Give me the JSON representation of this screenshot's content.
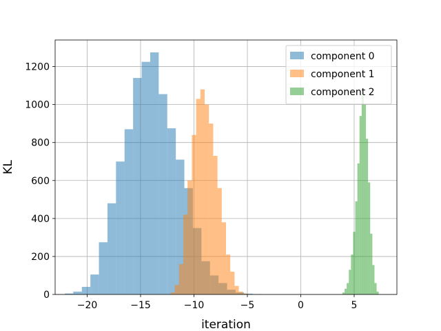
{
  "chart_data": {
    "type": "histogram",
    "title": "",
    "xlabel": "iteration",
    "ylabel": "KL",
    "xlim": [
      -23,
      9
    ],
    "ylim": [
      0,
      1340
    ],
    "grid": true,
    "legend_position": "top-right",
    "x_ticks": [
      -20,
      -15,
      -10,
      -5,
      0,
      5
    ],
    "x_tick_labels": [
      "−20",
      "−15",
      "−10",
      "−5",
      "0",
      "5"
    ],
    "y_ticks": [
      0,
      200,
      400,
      600,
      800,
      1000,
      1200
    ],
    "y_tick_labels": [
      "0",
      "200",
      "400",
      "600",
      "800",
      "1000",
      "1200"
    ],
    "series": [
      {
        "name": "component 0",
        "color": "#1f77b4",
        "opacity": 0.5,
        "bins": [
          {
            "x0": -22.1,
            "x1": -21.3,
            "value": 5
          },
          {
            "x0": -21.3,
            "x1": -20.5,
            "value": 15
          },
          {
            "x0": -20.5,
            "x1": -19.7,
            "value": 40
          },
          {
            "x0": -19.7,
            "x1": -18.9,
            "value": 105
          },
          {
            "x0": -18.9,
            "x1": -18.1,
            "value": 275
          },
          {
            "x0": -18.1,
            "x1": -17.3,
            "value": 480
          },
          {
            "x0": -17.3,
            "x1": -16.5,
            "value": 700
          },
          {
            "x0": -16.5,
            "x1": -15.7,
            "value": 870
          },
          {
            "x0": -15.7,
            "x1": -14.9,
            "value": 1140
          },
          {
            "x0": -14.9,
            "x1": -14.1,
            "value": 1225
          },
          {
            "x0": -14.1,
            "x1": -13.3,
            "value": 1275
          },
          {
            "x0": -13.3,
            "x1": -12.5,
            "value": 1055
          },
          {
            "x0": -12.5,
            "x1": -11.7,
            "value": 875
          },
          {
            "x0": -11.7,
            "x1": -10.9,
            "value": 710
          },
          {
            "x0": -10.9,
            "x1": -10.1,
            "value": 560
          },
          {
            "x0": -10.1,
            "x1": -9.3,
            "value": 350
          },
          {
            "x0": -9.3,
            "x1": -8.5,
            "value": 175
          },
          {
            "x0": -8.5,
            "x1": -7.7,
            "value": 100
          },
          {
            "x0": -7.7,
            "x1": -6.9,
            "value": 60
          },
          {
            "x0": -6.9,
            "x1": -6.1,
            "value": 25
          },
          {
            "x0": -6.1,
            "x1": -5.3,
            "value": 10
          },
          {
            "x0": -5.3,
            "x1": -4.5,
            "value": 4
          },
          {
            "x0": -4.5,
            "x1": -3.7,
            "value": 2
          }
        ]
      },
      {
        "name": "component 1",
        "color": "#ff7f0e",
        "opacity": 0.5,
        "bins": [
          {
            "x0": -12.2,
            "x1": -11.8,
            "value": 10
          },
          {
            "x0": -11.8,
            "x1": -11.4,
            "value": 50
          },
          {
            "x0": -11.4,
            "x1": -11.0,
            "value": 160
          },
          {
            "x0": -11.0,
            "x1": -10.6,
            "value": 420
          },
          {
            "x0": -10.6,
            "x1": -10.2,
            "value": 600
          },
          {
            "x0": -10.2,
            "x1": -9.8,
            "value": 840
          },
          {
            "x0": -9.8,
            "x1": -9.4,
            "value": 1030
          },
          {
            "x0": -9.4,
            "x1": -9.0,
            "value": 1080
          },
          {
            "x0": -9.0,
            "x1": -8.6,
            "value": 1000
          },
          {
            "x0": -8.6,
            "x1": -8.2,
            "value": 900
          },
          {
            "x0": -8.2,
            "x1": -7.8,
            "value": 730
          },
          {
            "x0": -7.8,
            "x1": -7.4,
            "value": 560
          },
          {
            "x0": -7.4,
            "x1": -7.0,
            "value": 380
          },
          {
            "x0": -7.0,
            "x1": -6.6,
            "value": 210
          },
          {
            "x0": -6.6,
            "x1": -6.2,
            "value": 120
          },
          {
            "x0": -6.2,
            "x1": -5.8,
            "value": 45
          },
          {
            "x0": -5.8,
            "x1": -5.4,
            "value": 15
          },
          {
            "x0": -5.4,
            "x1": -5.0,
            "value": 5
          }
        ]
      },
      {
        "name": "component 2",
        "color": "#2ca02c",
        "opacity": 0.5,
        "bins": [
          {
            "x0": 3.9,
            "x1": 4.1,
            "value": 10
          },
          {
            "x0": 4.1,
            "x1": 4.3,
            "value": 30
          },
          {
            "x0": 4.3,
            "x1": 4.5,
            "value": 60
          },
          {
            "x0": 4.5,
            "x1": 4.7,
            "value": 130
          },
          {
            "x0": 4.7,
            "x1": 4.9,
            "value": 210
          },
          {
            "x0": 4.9,
            "x1": 5.1,
            "value": 330
          },
          {
            "x0": 5.1,
            "x1": 5.3,
            "value": 490
          },
          {
            "x0": 5.3,
            "x1": 5.5,
            "value": 690
          },
          {
            "x0": 5.5,
            "x1": 5.7,
            "value": 940
          },
          {
            "x0": 5.7,
            "x1": 5.9,
            "value": 1060
          },
          {
            "x0": 5.9,
            "x1": 6.1,
            "value": 1000
          },
          {
            "x0": 6.1,
            "x1": 6.3,
            "value": 820
          },
          {
            "x0": 6.3,
            "x1": 6.5,
            "value": 590
          },
          {
            "x0": 6.5,
            "x1": 6.7,
            "value": 320
          },
          {
            "x0": 6.7,
            "x1": 6.9,
            "value": 155
          },
          {
            "x0": 6.9,
            "x1": 7.1,
            "value": 60
          },
          {
            "x0": 7.1,
            "x1": 7.3,
            "value": 15
          }
        ]
      }
    ]
  }
}
